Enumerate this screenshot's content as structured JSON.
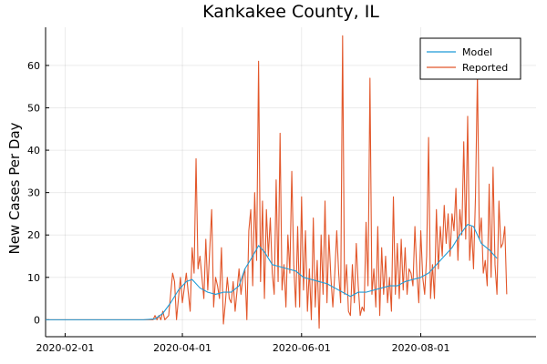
{
  "chart_data": {
    "type": "line",
    "title": "Kankakee County, IL",
    "xlabel": "",
    "ylabel": "New Cases Per Day",
    "x_type": "date",
    "xlim": [
      "2020-01-22",
      "2020-09-29"
    ],
    "ylim": [
      -4,
      69
    ],
    "x_ticks": [
      "2020-02-01",
      "2020-04-01",
      "2020-06-01",
      "2020-08-01"
    ],
    "y_ticks": [
      0,
      10,
      20,
      30,
      40,
      50,
      60
    ],
    "grid": true,
    "legend_position": "top-right",
    "colors": {
      "Model": "#1f9bd6",
      "Reported": "#e2572b"
    },
    "series": [
      {
        "name": "Model",
        "points": [
          [
            "2020-01-22",
            0
          ],
          [
            "2020-03-12",
            0
          ],
          [
            "2020-03-18",
            0.2
          ],
          [
            "2020-03-22",
            1.5
          ],
          [
            "2020-03-26",
            4
          ],
          [
            "2020-03-30",
            7
          ],
          [
            "2020-04-03",
            9
          ],
          [
            "2020-04-06",
            9.5
          ],
          [
            "2020-04-10",
            7.5
          ],
          [
            "2020-04-14",
            6.5
          ],
          [
            "2020-04-18",
            6
          ],
          [
            "2020-04-22",
            6.5
          ],
          [
            "2020-04-26",
            6.5
          ],
          [
            "2020-04-30",
            8
          ],
          [
            "2020-05-03",
            12
          ],
          [
            "2020-05-07",
            15
          ],
          [
            "2020-05-10",
            17.5
          ],
          [
            "2020-05-13",
            16
          ],
          [
            "2020-05-17",
            13
          ],
          [
            "2020-05-21",
            12.5
          ],
          [
            "2020-05-25",
            12
          ],
          [
            "2020-05-29",
            11.5
          ],
          [
            "2020-06-02",
            10
          ],
          [
            "2020-06-06",
            9.5
          ],
          [
            "2020-06-10",
            9
          ],
          [
            "2020-06-14",
            8.5
          ],
          [
            "2020-06-18",
            7.5
          ],
          [
            "2020-06-22",
            6.5
          ],
          [
            "2020-06-26",
            5.5
          ],
          [
            "2020-06-30",
            6.5
          ],
          [
            "2020-07-04",
            6.5
          ],
          [
            "2020-07-08",
            7
          ],
          [
            "2020-07-12",
            7.5
          ],
          [
            "2020-07-16",
            8
          ],
          [
            "2020-07-20",
            8
          ],
          [
            "2020-07-24",
            9
          ],
          [
            "2020-07-28",
            9.5
          ],
          [
            "2020-08-01",
            10
          ],
          [
            "2020-08-05",
            11
          ],
          [
            "2020-08-09",
            13
          ],
          [
            "2020-08-13",
            15
          ],
          [
            "2020-08-17",
            17
          ],
          [
            "2020-08-21",
            20
          ],
          [
            "2020-08-25",
            22.5
          ],
          [
            "2020-08-28",
            22
          ],
          [
            "2020-09-01",
            18
          ],
          [
            "2020-09-05",
            16.5
          ],
          [
            "2020-09-09",
            14.5
          ]
        ]
      },
      {
        "name": "Reported",
        "points": [
          [
            "2020-01-22",
            0
          ],
          [
            "2020-03-17",
            0
          ],
          [
            "2020-03-18",
            1
          ],
          [
            "2020-03-19",
            0
          ],
          [
            "2020-03-20",
            1
          ],
          [
            "2020-03-21",
            0
          ],
          [
            "2020-03-22",
            2
          ],
          [
            "2020-03-23",
            0
          ],
          [
            "2020-03-25",
            1
          ],
          [
            "2020-03-27",
            11
          ],
          [
            "2020-03-28",
            9
          ],
          [
            "2020-03-29",
            0
          ],
          [
            "2020-03-31",
            10
          ],
          [
            "2020-04-01",
            4
          ],
          [
            "2020-04-03",
            11
          ],
          [
            "2020-04-05",
            2
          ],
          [
            "2020-04-06",
            17
          ],
          [
            "2020-04-07",
            11
          ],
          [
            "2020-04-08",
            38
          ],
          [
            "2020-04-09",
            12
          ],
          [
            "2020-04-10",
            15
          ],
          [
            "2020-04-12",
            5
          ],
          [
            "2020-04-13",
            19
          ],
          [
            "2020-04-14",
            7
          ],
          [
            "2020-04-16",
            26
          ],
          [
            "2020-04-17",
            3
          ],
          [
            "2020-04-18",
            10
          ],
          [
            "2020-04-19",
            8
          ],
          [
            "2020-04-20",
            5
          ],
          [
            "2020-04-21",
            17
          ],
          [
            "2020-04-22",
            -1
          ],
          [
            "2020-04-23",
            4
          ],
          [
            "2020-04-24",
            10
          ],
          [
            "2020-04-25",
            5
          ],
          [
            "2020-04-26",
            4
          ],
          [
            "2020-04-27",
            9
          ],
          [
            "2020-04-28",
            2
          ],
          [
            "2020-04-29",
            7
          ],
          [
            "2020-04-30",
            12
          ],
          [
            "2020-05-01",
            6
          ],
          [
            "2020-05-02",
            10
          ],
          [
            "2020-05-03",
            12
          ],
          [
            "2020-05-04",
            0
          ],
          [
            "2020-05-05",
            21
          ],
          [
            "2020-05-06",
            26
          ],
          [
            "2020-05-07",
            8
          ],
          [
            "2020-05-08",
            30
          ],
          [
            "2020-05-09",
            14
          ],
          [
            "2020-05-10",
            61
          ],
          [
            "2020-05-11",
            9
          ],
          [
            "2020-05-12",
            28
          ],
          [
            "2020-05-13",
            5
          ],
          [
            "2020-05-14",
            26
          ],
          [
            "2020-05-15",
            15
          ],
          [
            "2020-05-16",
            24
          ],
          [
            "2020-05-17",
            11
          ],
          [
            "2020-05-18",
            6
          ],
          [
            "2020-05-19",
            33
          ],
          [
            "2020-05-20",
            9
          ],
          [
            "2020-05-21",
            44
          ],
          [
            "2020-05-22",
            7
          ],
          [
            "2020-05-23",
            13
          ],
          [
            "2020-05-24",
            3
          ],
          [
            "2020-05-25",
            20
          ],
          [
            "2020-05-26",
            11
          ],
          [
            "2020-05-27",
            35
          ],
          [
            "2020-05-28",
            13
          ],
          [
            "2020-05-29",
            3
          ],
          [
            "2020-05-30",
            22
          ],
          [
            "2020-05-31",
            3
          ],
          [
            "2020-06-01",
            29
          ],
          [
            "2020-06-02",
            7
          ],
          [
            "2020-06-03",
            21
          ],
          [
            "2020-06-04",
            2
          ],
          [
            "2020-06-05",
            12
          ],
          [
            "2020-06-06",
            0
          ],
          [
            "2020-06-07",
            24
          ],
          [
            "2020-06-08",
            3
          ],
          [
            "2020-06-09",
            14
          ],
          [
            "2020-06-10",
            -2
          ],
          [
            "2020-06-11",
            20
          ],
          [
            "2020-06-12",
            6
          ],
          [
            "2020-06-13",
            28
          ],
          [
            "2020-06-14",
            4
          ],
          [
            "2020-06-15",
            20
          ],
          [
            "2020-06-16",
            10
          ],
          [
            "2020-06-17",
            3
          ],
          [
            "2020-06-18",
            11
          ],
          [
            "2020-06-19",
            21
          ],
          [
            "2020-06-20",
            11
          ],
          [
            "2020-06-21",
            4
          ],
          [
            "2020-06-22",
            67
          ],
          [
            "2020-06-23",
            6
          ],
          [
            "2020-06-24",
            13
          ],
          [
            "2020-06-25",
            2
          ],
          [
            "2020-06-26",
            1
          ],
          [
            "2020-06-27",
            13
          ],
          [
            "2020-06-28",
            4
          ],
          [
            "2020-06-29",
            18
          ],
          [
            "2020-06-30",
            8
          ],
          [
            "2020-07-01",
            1
          ],
          [
            "2020-07-02",
            3
          ],
          [
            "2020-07-03",
            2
          ],
          [
            "2020-07-04",
            23
          ],
          [
            "2020-07-05",
            8
          ],
          [
            "2020-07-06",
            57
          ],
          [
            "2020-07-07",
            6
          ],
          [
            "2020-07-08",
            12
          ],
          [
            "2020-07-09",
            3
          ],
          [
            "2020-07-10",
            22
          ],
          [
            "2020-07-11",
            1
          ],
          [
            "2020-07-12",
            17
          ],
          [
            "2020-07-13",
            6
          ],
          [
            "2020-07-14",
            15
          ],
          [
            "2020-07-15",
            4
          ],
          [
            "2020-07-16",
            10
          ],
          [
            "2020-07-17",
            2
          ],
          [
            "2020-07-18",
            29
          ],
          [
            "2020-07-19",
            6
          ],
          [
            "2020-07-20",
            18
          ],
          [
            "2020-07-21",
            5
          ],
          [
            "2020-07-22",
            19
          ],
          [
            "2020-07-23",
            7
          ],
          [
            "2020-07-24",
            17
          ],
          [
            "2020-07-25",
            6
          ],
          [
            "2020-07-26",
            12
          ],
          [
            "2020-07-27",
            11
          ],
          [
            "2020-07-28",
            8
          ],
          [
            "2020-07-29",
            22
          ],
          [
            "2020-07-30",
            11
          ],
          [
            "2020-07-31",
            4
          ],
          [
            "2020-08-01",
            21
          ],
          [
            "2020-08-02",
            10
          ],
          [
            "2020-08-03",
            6
          ],
          [
            "2020-08-04",
            15
          ],
          [
            "2020-08-05",
            43
          ],
          [
            "2020-08-06",
            5
          ],
          [
            "2020-08-07",
            13
          ],
          [
            "2020-08-08",
            5
          ],
          [
            "2020-08-09",
            26
          ],
          [
            "2020-08-10",
            12
          ],
          [
            "2020-08-11",
            22
          ],
          [
            "2020-08-12",
            15
          ],
          [
            "2020-08-13",
            27
          ],
          [
            "2020-08-14",
            18
          ],
          [
            "2020-08-15",
            25
          ],
          [
            "2020-08-16",
            15
          ],
          [
            "2020-08-17",
            25
          ],
          [
            "2020-08-18",
            21
          ],
          [
            "2020-08-19",
            31
          ],
          [
            "2020-08-20",
            14
          ],
          [
            "2020-08-21",
            26
          ],
          [
            "2020-08-22",
            20
          ],
          [
            "2020-08-23",
            42
          ],
          [
            "2020-08-24",
            19
          ],
          [
            "2020-08-25",
            48
          ],
          [
            "2020-08-26",
            14
          ],
          [
            "2020-08-27",
            22
          ],
          [
            "2020-08-28",
            12
          ],
          [
            "2020-08-29",
            29
          ],
          [
            "2020-08-30",
            58
          ],
          [
            "2020-08-31",
            19
          ],
          [
            "2020-09-01",
            24
          ],
          [
            "2020-09-02",
            11
          ],
          [
            "2020-09-03",
            14
          ],
          [
            "2020-09-04",
            8
          ],
          [
            "2020-09-05",
            32
          ],
          [
            "2020-09-06",
            10
          ],
          [
            "2020-09-07",
            36
          ],
          [
            "2020-09-08",
            13
          ],
          [
            "2020-09-09",
            6
          ],
          [
            "2020-09-10",
            28
          ],
          [
            "2020-09-11",
            17
          ],
          [
            "2020-09-12",
            18
          ],
          [
            "2020-09-13",
            22
          ],
          [
            "2020-09-14",
            6
          ]
        ]
      }
    ]
  }
}
